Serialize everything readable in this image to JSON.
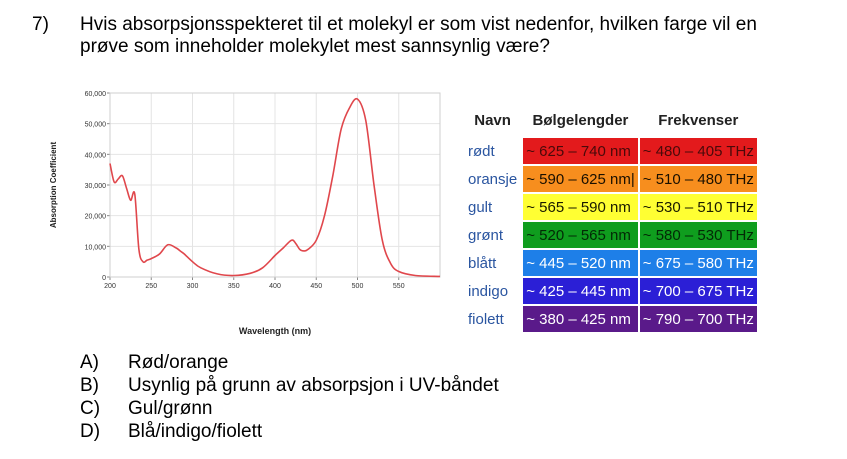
{
  "question": {
    "number": "7)",
    "line1": "Hvis absorpsjonsspekteret til et molekyl er som vist nedenfor, hvilken farge vil en",
    "line2": "prøve som inneholder molekylet mest sannsynlig være?"
  },
  "chart_data": {
    "type": "line",
    "xlabel": "Wavelength (nm)",
    "ylabel": "Absorption Coefficient",
    "xlim": [
      200,
      600
    ],
    "ylim": [
      0,
      60000
    ],
    "xticks": [
      "200",
      "250",
      "300",
      "350",
      "400",
      "450",
      "500",
      "550"
    ],
    "yticks": [
      "0",
      "10,000",
      "20,000",
      "30,000",
      "40,000",
      "50,000",
      "60,000"
    ],
    "grid": true,
    "color": "#e0474c",
    "x": [
      200,
      205,
      210,
      215,
      220,
      225,
      230,
      235,
      240,
      245,
      250,
      260,
      270,
      280,
      285,
      290,
      300,
      310,
      330,
      350,
      370,
      385,
      400,
      410,
      420,
      425,
      430,
      435,
      440,
      450,
      460,
      470,
      480,
      490,
      500,
      510,
      520,
      530,
      540,
      550,
      570,
      600
    ],
    "y": [
      37000,
      31000,
      32000,
      33000,
      29000,
      25000,
      27000,
      9000,
      5000,
      5500,
      6000,
      7500,
      10500,
      9500,
      8500,
      7500,
      5000,
      3000,
      1000,
      500,
      1200,
      3000,
      7000,
      9500,
      12000,
      11000,
      9000,
      8500,
      9000,
      12000,
      20000,
      33000,
      48000,
      55000,
      58000,
      51000,
      30000,
      12000,
      4500,
      1800,
      500,
      200
    ]
  },
  "color_table": {
    "headers": [
      "Navn",
      "Bølgelengder",
      "Frekvenser"
    ],
    "rows": [
      {
        "name": "rødt",
        "wave": "~ 625 – 740 nm",
        "freq": "~ 480 – 405 THz",
        "bg": "#e31a1c",
        "fg": "#4a0a0a"
      },
      {
        "name": "oransje",
        "wave": "~ 590 – 625 nm|",
        "freq": "~ 510 – 480 THz",
        "bg": "#f78e1e",
        "fg": "#1a1000"
      },
      {
        "name": "gult",
        "wave": "~ 565 – 590 nm",
        "freq": "~ 530 – 510 THz",
        "bg": "#ffff33",
        "fg": "#1a1a00"
      },
      {
        "name": "grønt",
        "wave": "~ 520 – 565 nm",
        "freq": "~ 580 – 530 THz",
        "bg": "#0f9d1e",
        "fg": "#032a06"
      },
      {
        "name": "blått",
        "wave": "~ 445 – 520 nm",
        "freq": "~ 675 – 580 THz",
        "bg": "#1e7fe8",
        "fg": "#ffffff"
      },
      {
        "name": "indigo",
        "wave": "~ 425 – 445 nm",
        "freq": "~ 700 – 675 THz",
        "bg": "#2b1fd6",
        "fg": "#ffffff"
      },
      {
        "name": "fiolett",
        "wave": "~ 380 – 425 nm",
        "freq": "~ 790 – 700 THz",
        "bg": "#5a1a8a",
        "fg": "#ffffff"
      }
    ]
  },
  "answers": [
    {
      "letter": "A)",
      "text": "Rød/orange"
    },
    {
      "letter": "B)",
      "text": "Usynlig på grunn av absorpsjon i UV-båndet"
    },
    {
      "letter": "C)",
      "text": "Gul/grønn"
    },
    {
      "letter": "D)",
      "text": "Blå/indigo/fiolett"
    }
  ]
}
